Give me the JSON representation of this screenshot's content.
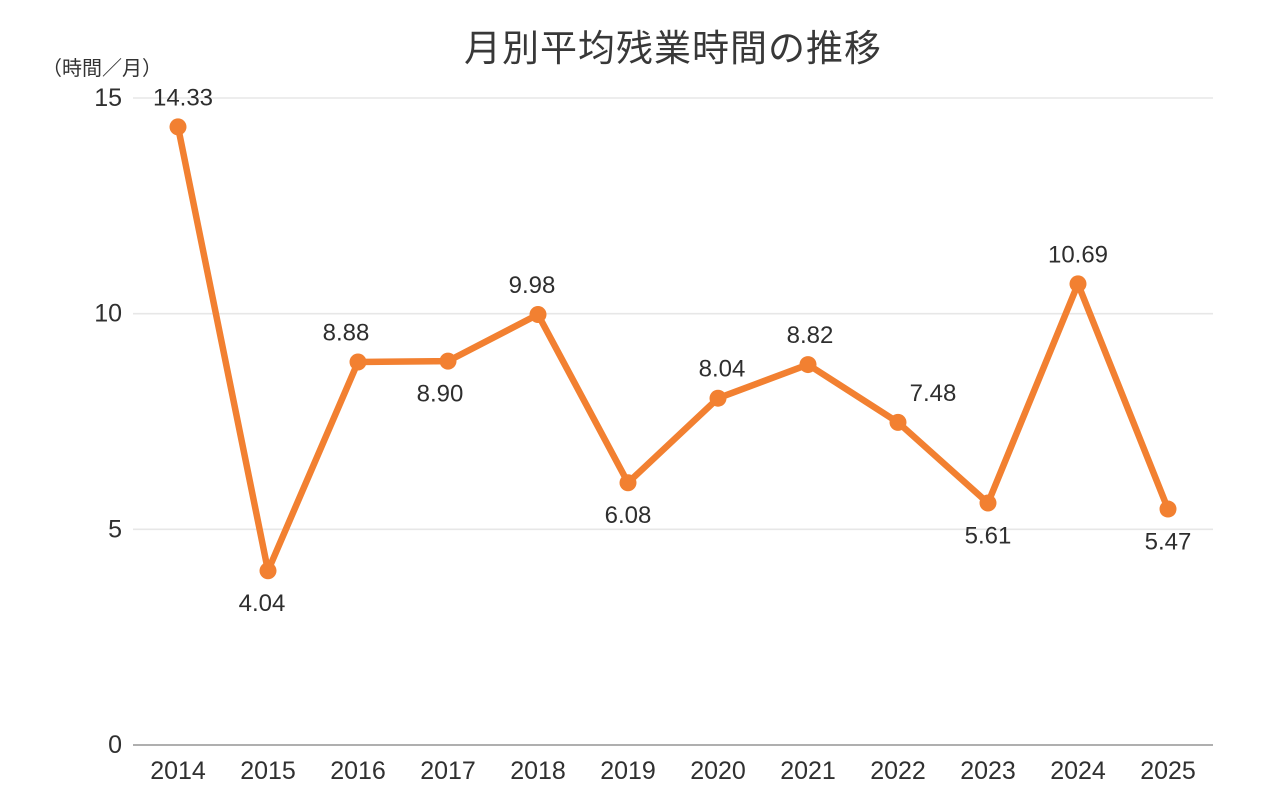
{
  "title": "月別平均残業時間の推移",
  "unit_label": "（時間／月）",
  "colors": {
    "line": "#F28031",
    "marker": "#F28031",
    "gridline": "#E7E7E7",
    "axis_line": "#AFAFAF",
    "tick_text": "#303030",
    "label_text": "#2e2e2e",
    "background": "#FFFFFF"
  },
  "chart_data": {
    "type": "line",
    "title": "月別平均残業時間の推移",
    "ylabel": "（時間／月）",
    "xlabel": "",
    "categories": [
      "2014",
      "2015",
      "2016",
      "2017",
      "2018",
      "2019",
      "2020",
      "2021",
      "2022",
      "2023",
      "2024",
      "2025"
    ],
    "series": [
      {
        "name": "月別平均残業時間",
        "values": [
          14.33,
          4.04,
          8.88,
          8.9,
          9.98,
          6.08,
          8.04,
          8.82,
          7.48,
          5.61,
          10.69,
          5.47
        ]
      }
    ],
    "data_labels": [
      "14.33",
      "4.04",
      "8.88",
      "8.90",
      "9.98",
      "6.08",
      "8.04",
      "8.82",
      "7.48",
      "5.61",
      "10.69",
      "5.47"
    ],
    "label_positions": [
      "above",
      "below",
      "above",
      "below",
      "above",
      "below",
      "above",
      "above",
      "above",
      "below",
      "above",
      "below"
    ],
    "label_dx": [
      5,
      -6,
      -12,
      -8,
      -6,
      0,
      4,
      2,
      35,
      0,
      0,
      0
    ],
    "y_ticks": [
      "0",
      "5",
      "10",
      "15"
    ],
    "ylim": [
      0,
      15
    ],
    "grid": true,
    "legend": "none"
  }
}
